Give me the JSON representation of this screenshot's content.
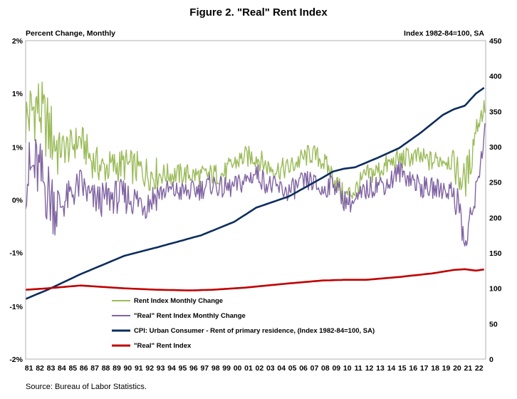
{
  "colors": {
    "rent_change": "#9bbb59",
    "real_change": "#8064a2",
    "cpi": "#0d2d5e",
    "real_index": "#c00000",
    "plot_border": "#b0b0b0"
  },
  "chart_data": {
    "type": "line",
    "title": "Figure 2. \"Real\" Rent Index",
    "left_axis_title": "Percent Change, Monthly",
    "right_axis_title": "Index 1982-84=100, SA",
    "left_ticks": [
      "2%",
      "1%",
      "1%",
      "0%",
      "-1%",
      "-1%",
      "-2%"
    ],
    "left_range": [
      -1.0,
      1.0
    ],
    "left_tick_values": [
      1.0,
      0.67,
      0.33,
      0.0,
      -0.33,
      -0.67,
      -1.0
    ],
    "right_ticks": [
      "450",
      "400",
      "350",
      "300",
      "250",
      "200",
      "150",
      "100",
      "50",
      "0"
    ],
    "right_range": [
      0,
      450
    ],
    "right_tick_values": [
      450,
      400,
      350,
      300,
      250,
      200,
      150,
      100,
      50,
      0
    ],
    "x_labels": [
      "81",
      "82",
      "83",
      "84",
      "85",
      "86",
      "87",
      "88",
      "89",
      "90",
      "91",
      "92",
      "93",
      "94",
      "95",
      "96",
      "97",
      "98",
      "99",
      "00",
      "01",
      "02",
      "03",
      "04",
      "05",
      "06",
      "07",
      "08",
      "09",
      "10",
      "11",
      "12",
      "13",
      "14",
      "15",
      "16",
      "17",
      "18",
      "19",
      "20",
      "21",
      "22"
    ],
    "x_range": [
      1981,
      2022.9
    ],
    "grid": false,
    "legend_position": "bottom-left",
    "series": [
      {
        "name": "Rent Index Monthly Change",
        "axis": "left",
        "color": "#9bbb59",
        "anchors": [
          [
            1981,
            0.5
          ],
          [
            1982,
            0.6
          ],
          [
            1983,
            0.45
          ],
          [
            1984,
            0.32
          ],
          [
            1985,
            0.33
          ],
          [
            1986,
            0.38
          ],
          [
            1987,
            0.25
          ],
          [
            1988,
            0.2
          ],
          [
            1989,
            0.21
          ],
          [
            1990,
            0.22
          ],
          [
            1991,
            0.2
          ],
          [
            1992,
            0.17
          ],
          [
            1993,
            0.16
          ],
          [
            1994,
            0.16
          ],
          [
            1995,
            0.16
          ],
          [
            1996,
            0.16
          ],
          [
            1997,
            0.15
          ],
          [
            1998,
            0.16
          ],
          [
            1999,
            0.16
          ],
          [
            2000,
            0.23
          ],
          [
            2001,
            0.27
          ],
          [
            2002,
            0.27
          ],
          [
            2003,
            0.21
          ],
          [
            2004,
            0.19
          ],
          [
            2005,
            0.2
          ],
          [
            2006,
            0.25
          ],
          [
            2007,
            0.29
          ],
          [
            2008,
            0.25
          ],
          [
            2009,
            0.15
          ],
          [
            2010,
            0.02
          ],
          [
            2011,
            0.06
          ],
          [
            2012,
            0.15
          ],
          [
            2013,
            0.18
          ],
          [
            2014,
            0.22
          ],
          [
            2015,
            0.25
          ],
          [
            2016,
            0.27
          ],
          [
            2017,
            0.26
          ],
          [
            2018,
            0.24
          ],
          [
            2019,
            0.26
          ],
          [
            2020,
            0.24
          ],
          [
            2020.5,
            0.14
          ],
          [
            2021,
            0.12
          ],
          [
            2021.5,
            0.23
          ],
          [
            2022,
            0.45
          ],
          [
            2022.9,
            0.6
          ]
        ]
      },
      {
        "name": "\"Real\" Rent Index Monthly Change",
        "axis": "left",
        "color": "#8064a2",
        "anchors": [
          [
            1981,
            0.15
          ],
          [
            1982,
            0.2
          ],
          [
            1983,
            0.05
          ],
          [
            1984,
            -0.05
          ],
          [
            1985,
            0.02
          ],
          [
            1986,
            0.1
          ],
          [
            1987,
            0.0
          ],
          [
            1988,
            0.0
          ],
          [
            1989,
            0.02
          ],
          [
            1990,
            0.02
          ],
          [
            1991,
            0.0
          ],
          [
            1992,
            -0.02
          ],
          [
            1993,
            0.04
          ],
          [
            1994,
            0.06
          ],
          [
            1995,
            0.05
          ],
          [
            1996,
            0.05
          ],
          [
            1997,
            0.07
          ],
          [
            1998,
            0.1
          ],
          [
            1999,
            0.07
          ],
          [
            2000,
            0.08
          ],
          [
            2001,
            0.12
          ],
          [
            2002,
            0.17
          ],
          [
            2003,
            0.1
          ],
          [
            2004,
            0.07
          ],
          [
            2005,
            0.05
          ],
          [
            2006,
            0.1
          ],
          [
            2007,
            0.12
          ],
          [
            2008,
            0.05
          ],
          [
            2009,
            0.12
          ],
          [
            2010,
            0.0
          ],
          [
            2011,
            -0.02
          ],
          [
            2012,
            0.06
          ],
          [
            2013,
            0.1
          ],
          [
            2014,
            0.1
          ],
          [
            2015,
            0.18
          ],
          [
            2016,
            0.14
          ],
          [
            2017,
            0.08
          ],
          [
            2018,
            0.07
          ],
          [
            2019,
            0.07
          ],
          [
            2020,
            0.05
          ],
          [
            2020.5,
            -0.05
          ],
          [
            2021,
            -0.3
          ],
          [
            2021.5,
            -0.15
          ],
          [
            2022,
            0.05
          ],
          [
            2022.9,
            0.45
          ]
        ]
      },
      {
        "name": "CPI: Urban Consumer - Rent of primary residence, (Index 1982-84=100, SA)",
        "axis": "right",
        "color": "#0d2d5e",
        "anchors": [
          [
            1981,
            85
          ],
          [
            1983,
            98
          ],
          [
            1986,
            120
          ],
          [
            1990,
            146
          ],
          [
            1993,
            158
          ],
          [
            1997,
            175
          ],
          [
            2000,
            194
          ],
          [
            2002,
            214
          ],
          [
            2005,
            230
          ],
          [
            2008,
            256
          ],
          [
            2009,
            265
          ],
          [
            2010,
            269
          ],
          [
            2011,
            271
          ],
          [
            2013,
            284
          ],
          [
            2015,
            298
          ],
          [
            2017,
            320
          ],
          [
            2019,
            345
          ],
          [
            2020,
            353
          ],
          [
            2021,
            358
          ],
          [
            2022,
            375
          ],
          [
            2022.9,
            385
          ]
        ]
      },
      {
        "name": "\"Real\" Rent Index",
        "axis": "right",
        "color": "#c00000",
        "anchors": [
          [
            1981,
            98
          ],
          [
            1983,
            100
          ],
          [
            1986,
            104
          ],
          [
            1990,
            100
          ],
          [
            1993,
            98
          ],
          [
            1996,
            97
          ],
          [
            1998,
            98
          ],
          [
            2001,
            101
          ],
          [
            2005,
            107
          ],
          [
            2008,
            111
          ],
          [
            2010,
            112
          ],
          [
            2012,
            112
          ],
          [
            2015,
            116
          ],
          [
            2018,
            121
          ],
          [
            2020,
            126
          ],
          [
            2021,
            127
          ],
          [
            2022,
            125
          ],
          [
            2022.9,
            127
          ]
        ]
      }
    ],
    "source": "Source: Bureau of Labor Statistics."
  }
}
